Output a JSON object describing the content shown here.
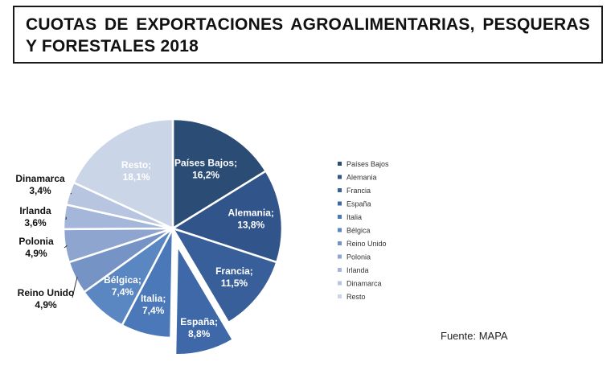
{
  "title": "CUOTAS DE EXPORTACIONES AGROALIMENTARIAS, PESQUERAS Y FORESTALES 2018",
  "source": "Fuente: MAPA",
  "chart_data": {
    "type": "pie",
    "title": "CUOTAS DE EXPORTACIONES AGROALIMENTARIAS, PESQUERAS Y FORESTALES 2018",
    "unit": "%",
    "legend_position": "right",
    "exploded": [
      "España"
    ],
    "slices": [
      {
        "label": "Países Bajos",
        "value": 16.2,
        "text": "16,2%",
        "color": "#2b4c74"
      },
      {
        "label": "Alemania",
        "value": 13.8,
        "text": "13,8%",
        "color": "#31558a"
      },
      {
        "label": "Francia",
        "value": 11.5,
        "text": "11,5%",
        "color": "#385f99"
      },
      {
        "label": "España",
        "value": 8.8,
        "text": "8,8%",
        "color": "#3e68a8"
      },
      {
        "label": "Italia",
        "value": 7.4,
        "text": "7,4%",
        "color": "#4a78b8"
      },
      {
        "label": "Bélgica",
        "value": 7.4,
        "text": "7,4%",
        "color": "#5a86c2"
      },
      {
        "label": "Reino Unido",
        "value": 4.9,
        "text": "4,9%",
        "color": "#7593c4"
      },
      {
        "label": "Polonia",
        "value": 4.9,
        "text": "4,9%",
        "color": "#8ea5cf"
      },
      {
        "label": "Irlanda",
        "value": 3.6,
        "text": "3,6%",
        "color": "#a4b6d9"
      },
      {
        "label": "Dinamarca",
        "value": 3.4,
        "text": "3,4%",
        "color": "#b7c5e0"
      },
      {
        "label": "Resto",
        "value": 18.1,
        "text": "18,1%",
        "color": "#cbd5e8"
      }
    ]
  }
}
